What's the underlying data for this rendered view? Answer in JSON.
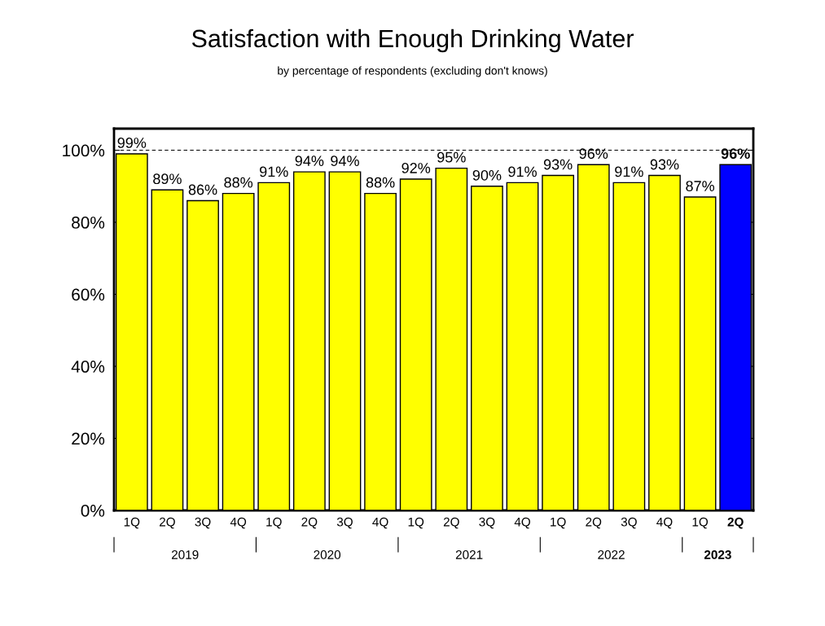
{
  "chart_data": {
    "type": "bar",
    "title": "Satisfaction with Enough Drinking Water",
    "subtitle": "by percentage of respondents (excluding don't knows)",
    "categories": [
      "1Q",
      "2Q",
      "3Q",
      "4Q",
      "1Q",
      "2Q",
      "3Q",
      "4Q",
      "1Q",
      "2Q",
      "3Q",
      "4Q",
      "1Q",
      "2Q",
      "3Q",
      "4Q",
      "1Q",
      "2Q"
    ],
    "values": [
      99,
      89,
      86,
      88,
      91,
      94,
      94,
      88,
      92,
      95,
      90,
      91,
      93,
      96,
      91,
      93,
      87,
      96
    ],
    "value_labels": [
      "99%",
      "89%",
      "86%",
      "88%",
      "91%",
      "94%",
      "94%",
      "88%",
      "92%",
      "95%",
      "90%",
      "91%",
      "93%",
      "96%",
      "91%",
      "93%",
      "87%",
      "96%"
    ],
    "colors": [
      "#ffff00",
      "#ffff00",
      "#ffff00",
      "#ffff00",
      "#ffff00",
      "#ffff00",
      "#ffff00",
      "#ffff00",
      "#ffff00",
      "#ffff00",
      "#ffff00",
      "#ffff00",
      "#ffff00",
      "#ffff00",
      "#ffff00",
      "#ffff00",
      "#ffff00",
      "#0000ff"
    ],
    "annotations": [
      "2019",
      "2020",
      "2021",
      "2022",
      "2023"
    ],
    "ylim": [
      0,
      106
    ],
    "yticks": [
      {
        "value": 0,
        "label": "0%"
      },
      {
        "value": 20,
        "label": "20%"
      },
      {
        "value": 40,
        "label": "40%"
      },
      {
        "value": 60,
        "label": "60%"
      },
      {
        "value": 80,
        "label": "80%"
      },
      {
        "value": 100,
        "label": "100%"
      }
    ],
    "ref_lines": [
      {
        "axis": "y",
        "value": 100,
        "line_style": "dashed",
        "color": "#000000"
      }
    ],
    "grid": false,
    "legend": false
  }
}
